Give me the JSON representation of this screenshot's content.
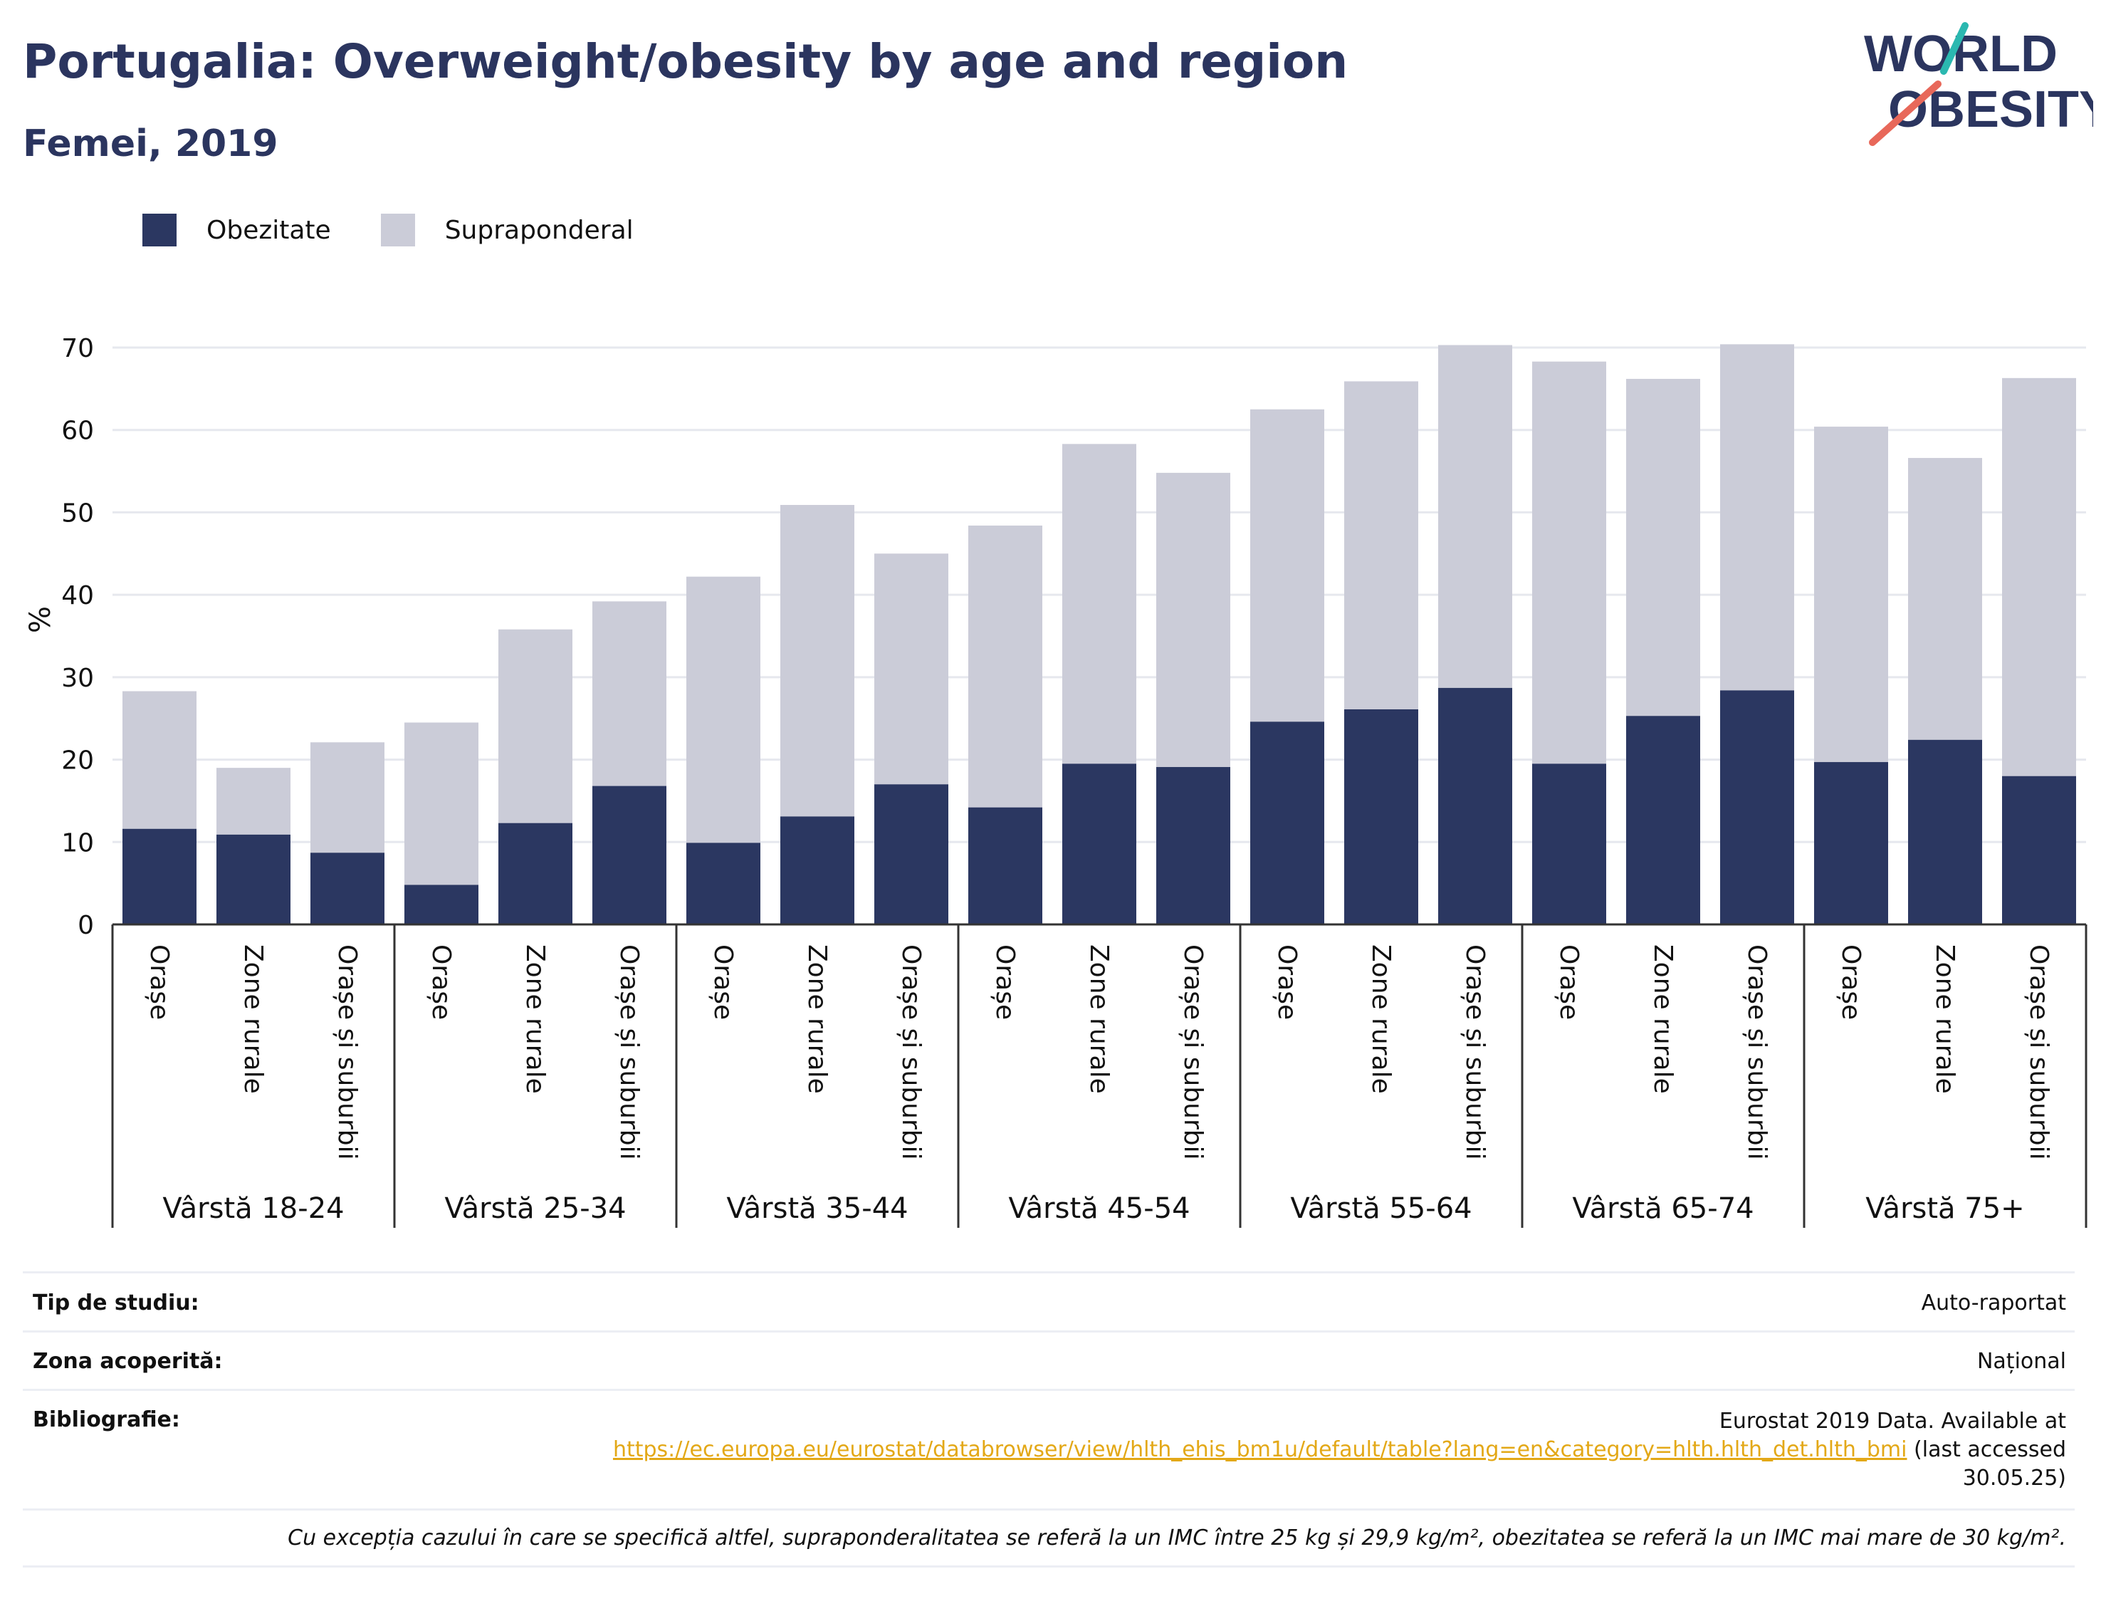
{
  "header": {
    "title": "Portugalia: Overweight/obesity by age and region",
    "subtitle": "Femei, 2019"
  },
  "logo": {
    "line1": "WORLD",
    "line2": "OBESITY",
    "colors": {
      "text": "#2b355f",
      "stroke_top": "#2bb8b0",
      "stroke_bottom": "#e8685a"
    }
  },
  "colors": {
    "obesity": "#2b3761",
    "overweight": "#cbccd8",
    "grid": "#e6e8ee",
    "axis": "#333333"
  },
  "chart_data": {
    "type": "bar",
    "stacked": true,
    "ylabel": "%",
    "ylim": [
      0,
      70
    ],
    "yticks": [
      0,
      10,
      20,
      30,
      40,
      50,
      60,
      70
    ],
    "grid": true,
    "legend_position": "top-left",
    "legend": [
      "Obezitate",
      "Supraponderal"
    ],
    "groups": [
      "Vârstă 18-24",
      "Vârstă 25-34",
      "Vârstă 35-44",
      "Vârstă 45-54",
      "Vârstă 55-64",
      "Vârstă 65-74",
      "Vârstă 75+"
    ],
    "subcategories": [
      "Orașe",
      "Zone rurale",
      "Orașe și suburbii"
    ],
    "series": [
      {
        "name": "Obezitate",
        "values": [
          11.6,
          10.9,
          8.7,
          4.8,
          12.3,
          16.8,
          9.9,
          13.1,
          17.0,
          14.2,
          19.5,
          19.1,
          24.6,
          26.1,
          28.7,
          19.5,
          25.3,
          28.4,
          19.7,
          22.4,
          18.0
        ]
      },
      {
        "name": "Supraponderal",
        "values": [
          16.7,
          8.1,
          13.4,
          19.7,
          23.5,
          22.4,
          32.3,
          37.8,
          28.0,
          34.2,
          38.8,
          35.7,
          37.9,
          39.8,
          41.6,
          48.8,
          40.9,
          42.0,
          40.7,
          34.2,
          48.3
        ]
      }
    ]
  },
  "meta": {
    "study_type_label": "Tip de studiu:",
    "study_type_value": "Auto-raportat",
    "coverage_label": "Zona acoperită:",
    "coverage_value": "Național",
    "bibliography_label": "Bibliografie:",
    "bibliography_line1": "Eurostat 2019 Data. Available at",
    "bibliography_url": "https://ec.europa.eu/eurostat/databrowser/view/hlth_ehis_bm1u/default/table?lang=en&category=hlth.hlth_det.hlth_bmi",
    "bibliography_suffix": "(last accessed",
    "bibliography_date": "30.05.25)",
    "note": "Cu excepția cazului în care se specifică altfel, supraponderalitatea se referă la un IMC între 25 kg și 29,9 kg/m², obezitatea se referă la un IMC mai mare de 30 kg/m²."
  }
}
